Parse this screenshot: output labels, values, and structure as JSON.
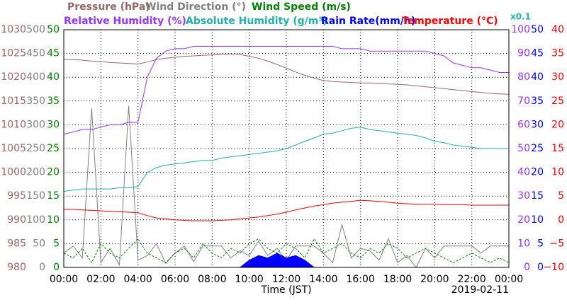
{
  "chart_data": {
    "type": "line",
    "xlabel": "Time (JST)",
    "date": "2019-02-11",
    "grid": true,
    "xlim": [
      0,
      24
    ],
    "xticks": [
      {
        "value": 0,
        "label": "00:00"
      },
      {
        "value": 2,
        "label": "02:00"
      },
      {
        "value": 4,
        "label": "04:00"
      },
      {
        "value": 6,
        "label": "06:00"
      },
      {
        "value": 8,
        "label": "08:00"
      },
      {
        "value": 10,
        "label": "10:00"
      },
      {
        "value": 12,
        "label": "12:00"
      },
      {
        "value": 14,
        "label": "14:00"
      },
      {
        "value": 16,
        "label": "16:00"
      },
      {
        "value": 18,
        "label": "18:00"
      },
      {
        "value": 20,
        "label": "20:00"
      },
      {
        "value": 22,
        "label": "22:00"
      },
      {
        "value": 24,
        "label": "00:00"
      }
    ],
    "x": [
      0,
      0.5,
      1,
      1.5,
      2,
      2.5,
      3,
      3.5,
      4,
      4.5,
      5,
      5.5,
      6,
      6.5,
      7,
      7.5,
      8,
      8.5,
      9,
      9.5,
      10,
      10.5,
      11,
      11.5,
      12,
      12.5,
      13,
      13.5,
      14,
      14.5,
      15,
      15.5,
      16,
      16.5,
      17,
      17.5,
      18,
      18.5,
      19,
      19.5,
      20,
      20.5,
      21,
      21.5,
      22,
      22.5,
      23,
      23.5,
      24
    ],
    "series": [
      {
        "name": "Pressure (hPa)",
        "color": "#996666",
        "side": "left",
        "ylim": [
          980,
          1030
        ],
        "yticks": [
          980,
          985,
          990,
          995,
          1000,
          1005,
          1010,
          1015,
          1020,
          1025,
          1030
        ],
        "values": [
          1023.8,
          1023.7,
          1023.6,
          1023.4,
          1023.3,
          1023.1,
          1023.0,
          1022.9,
          1022.8,
          1023.2,
          1023.7,
          1024.0,
          1024.2,
          1024.4,
          1024.5,
          1024.6,
          1024.7,
          1024.8,
          1024.9,
          1024.8,
          1024.4,
          1024.0,
          1023.4,
          1022.7,
          1021.9,
          1021.1,
          1020.4,
          1019.8,
          1019.3,
          1019.1,
          1019.0,
          1018.9,
          1018.8,
          1018.8,
          1018.7,
          1018.6,
          1018.5,
          1018.4,
          1018.2,
          1018.0,
          1017.8,
          1017.6,
          1017.4,
          1017.2,
          1017.0,
          1016.8,
          1016.6,
          1016.5,
          1016.4
        ]
      },
      {
        "name": "Wind Direction (°)",
        "color": "#808080",
        "side": "left",
        "ylim": [
          0,
          500
        ],
        "yticks": [
          0,
          50,
          100,
          150,
          200,
          250,
          300,
          350,
          400,
          450,
          500
        ],
        "values": [
          30,
          45,
          20,
          335,
          10,
          40,
          5,
          340,
          15,
          25,
          50,
          8,
          30,
          45,
          12,
          45,
          45,
          45,
          20,
          35,
          25,
          55,
          25,
          40,
          15,
          45,
          45,
          45,
          30,
          10,
          90,
          20,
          40,
          35,
          15,
          60,
          10,
          25,
          0,
          40,
          20,
          45,
          45,
          45,
          45,
          30,
          45,
          45,
          45
        ]
      },
      {
        "name": "Wind Speed (m/s)",
        "color": "#008000",
        "side": "left",
        "ylim": [
          0,
          50
        ],
        "yticks": [
          0,
          5,
          10,
          15,
          20,
          25,
          30,
          35,
          40,
          45,
          50
        ],
        "values": [
          3,
          2,
          4,
          1,
          5,
          3,
          2,
          4,
          6,
          3,
          2,
          1,
          3,
          4,
          2,
          5,
          3,
          2,
          4,
          3,
          5,
          6,
          4,
          3,
          5,
          4,
          2,
          6,
          3,
          4,
          5,
          3,
          2,
          4,
          3,
          5,
          4,
          2,
          3,
          4,
          3,
          2,
          1,
          2,
          3,
          2,
          1,
          2,
          1
        ]
      },
      {
        "name": "Relative Humidity (%)",
        "color": "#9933ff",
        "side": "right",
        "ylim": [
          0,
          100
        ],
        "yticks": [
          0,
          10,
          20,
          30,
          40,
          50,
          60,
          70,
          80,
          90,
          100
        ],
        "values": [
          56,
          57,
          58,
          58,
          59,
          60,
          60,
          61,
          61,
          80,
          88,
          91,
          92,
          92,
          93,
          93,
          93,
          93,
          93,
          93,
          93,
          93,
          93,
          93,
          93,
          93,
          93,
          93,
          93,
          93,
          92,
          92,
          92,
          91,
          91,
          91,
          91,
          91,
          91,
          91,
          90,
          89,
          86,
          85,
          84,
          84,
          83,
          82,
          82
        ]
      },
      {
        "name": "Absolute Humidity (g/m³)",
        "color": "#20b2aa",
        "side": "right",
        "ylim": [
          0,
          10
        ],
        "scale_note": "x0.1",
        "values": [
          3.2,
          3.25,
          3.3,
          3.3,
          3.3,
          3.3,
          3.35,
          3.35,
          3.4,
          4.0,
          4.2,
          4.3,
          4.35,
          4.4,
          4.45,
          4.5,
          4.5,
          4.6,
          4.65,
          4.7,
          4.75,
          4.8,
          4.85,
          4.9,
          5.0,
          5.15,
          5.3,
          5.45,
          5.6,
          5.65,
          5.75,
          5.85,
          5.9,
          5.8,
          5.75,
          5.7,
          5.65,
          5.6,
          5.55,
          5.45,
          5.3,
          5.25,
          5.15,
          5.1,
          5.05,
          5.0,
          5.0,
          5.0,
          5.0
        ]
      },
      {
        "name": "Rain Rate(mm/h)",
        "color": "#0000ff",
        "side": "right",
        "style": "area",
        "ylim": [
          0,
          50
        ],
        "yticks": [
          0,
          5,
          10,
          15,
          20,
          25,
          30,
          35,
          40,
          45,
          50
        ],
        "values": [
          0,
          0,
          0,
          0,
          0,
          0,
          0,
          0,
          0,
          0,
          0,
          0,
          0,
          0,
          0,
          0,
          0,
          0,
          0,
          0,
          1.5,
          2.5,
          2,
          3,
          2,
          2.5,
          1.5,
          0,
          0,
          0,
          0,
          0,
          0,
          0,
          0,
          0,
          0,
          0,
          0,
          0,
          0,
          0,
          0,
          0,
          0,
          0,
          0,
          0,
          0
        ]
      },
      {
        "name": "Temperature (°C)",
        "color": "#ff0000",
        "side": "right",
        "ylim": [
          -10,
          40
        ],
        "yticks": [
          {
            "value": -10,
            "label": "−10"
          },
          {
            "value": -5,
            "label": "−5"
          },
          0,
          5,
          10,
          15,
          20,
          25,
          30,
          35,
          40
        ],
        "values": [
          2.2,
          2.2,
          2.1,
          2.0,
          1.9,
          1.8,
          1.7,
          1.6,
          1.5,
          0.9,
          0.4,
          0.2,
          0,
          -0.1,
          -0.2,
          -0.2,
          -0.2,
          -0.1,
          0,
          0.2,
          0.4,
          0.6,
          0.9,
          1.2,
          1.6,
          2.1,
          2.5,
          2.9,
          3.2,
          3.5,
          3.7,
          3.9,
          4.1,
          4.0,
          3.9,
          3.7,
          3.5,
          3.4,
          3.3,
          3.3,
          3.3,
          3.2,
          3.2,
          3.2,
          3.1,
          3.1,
          3.1,
          3.1,
          3.1
        ]
      }
    ]
  }
}
